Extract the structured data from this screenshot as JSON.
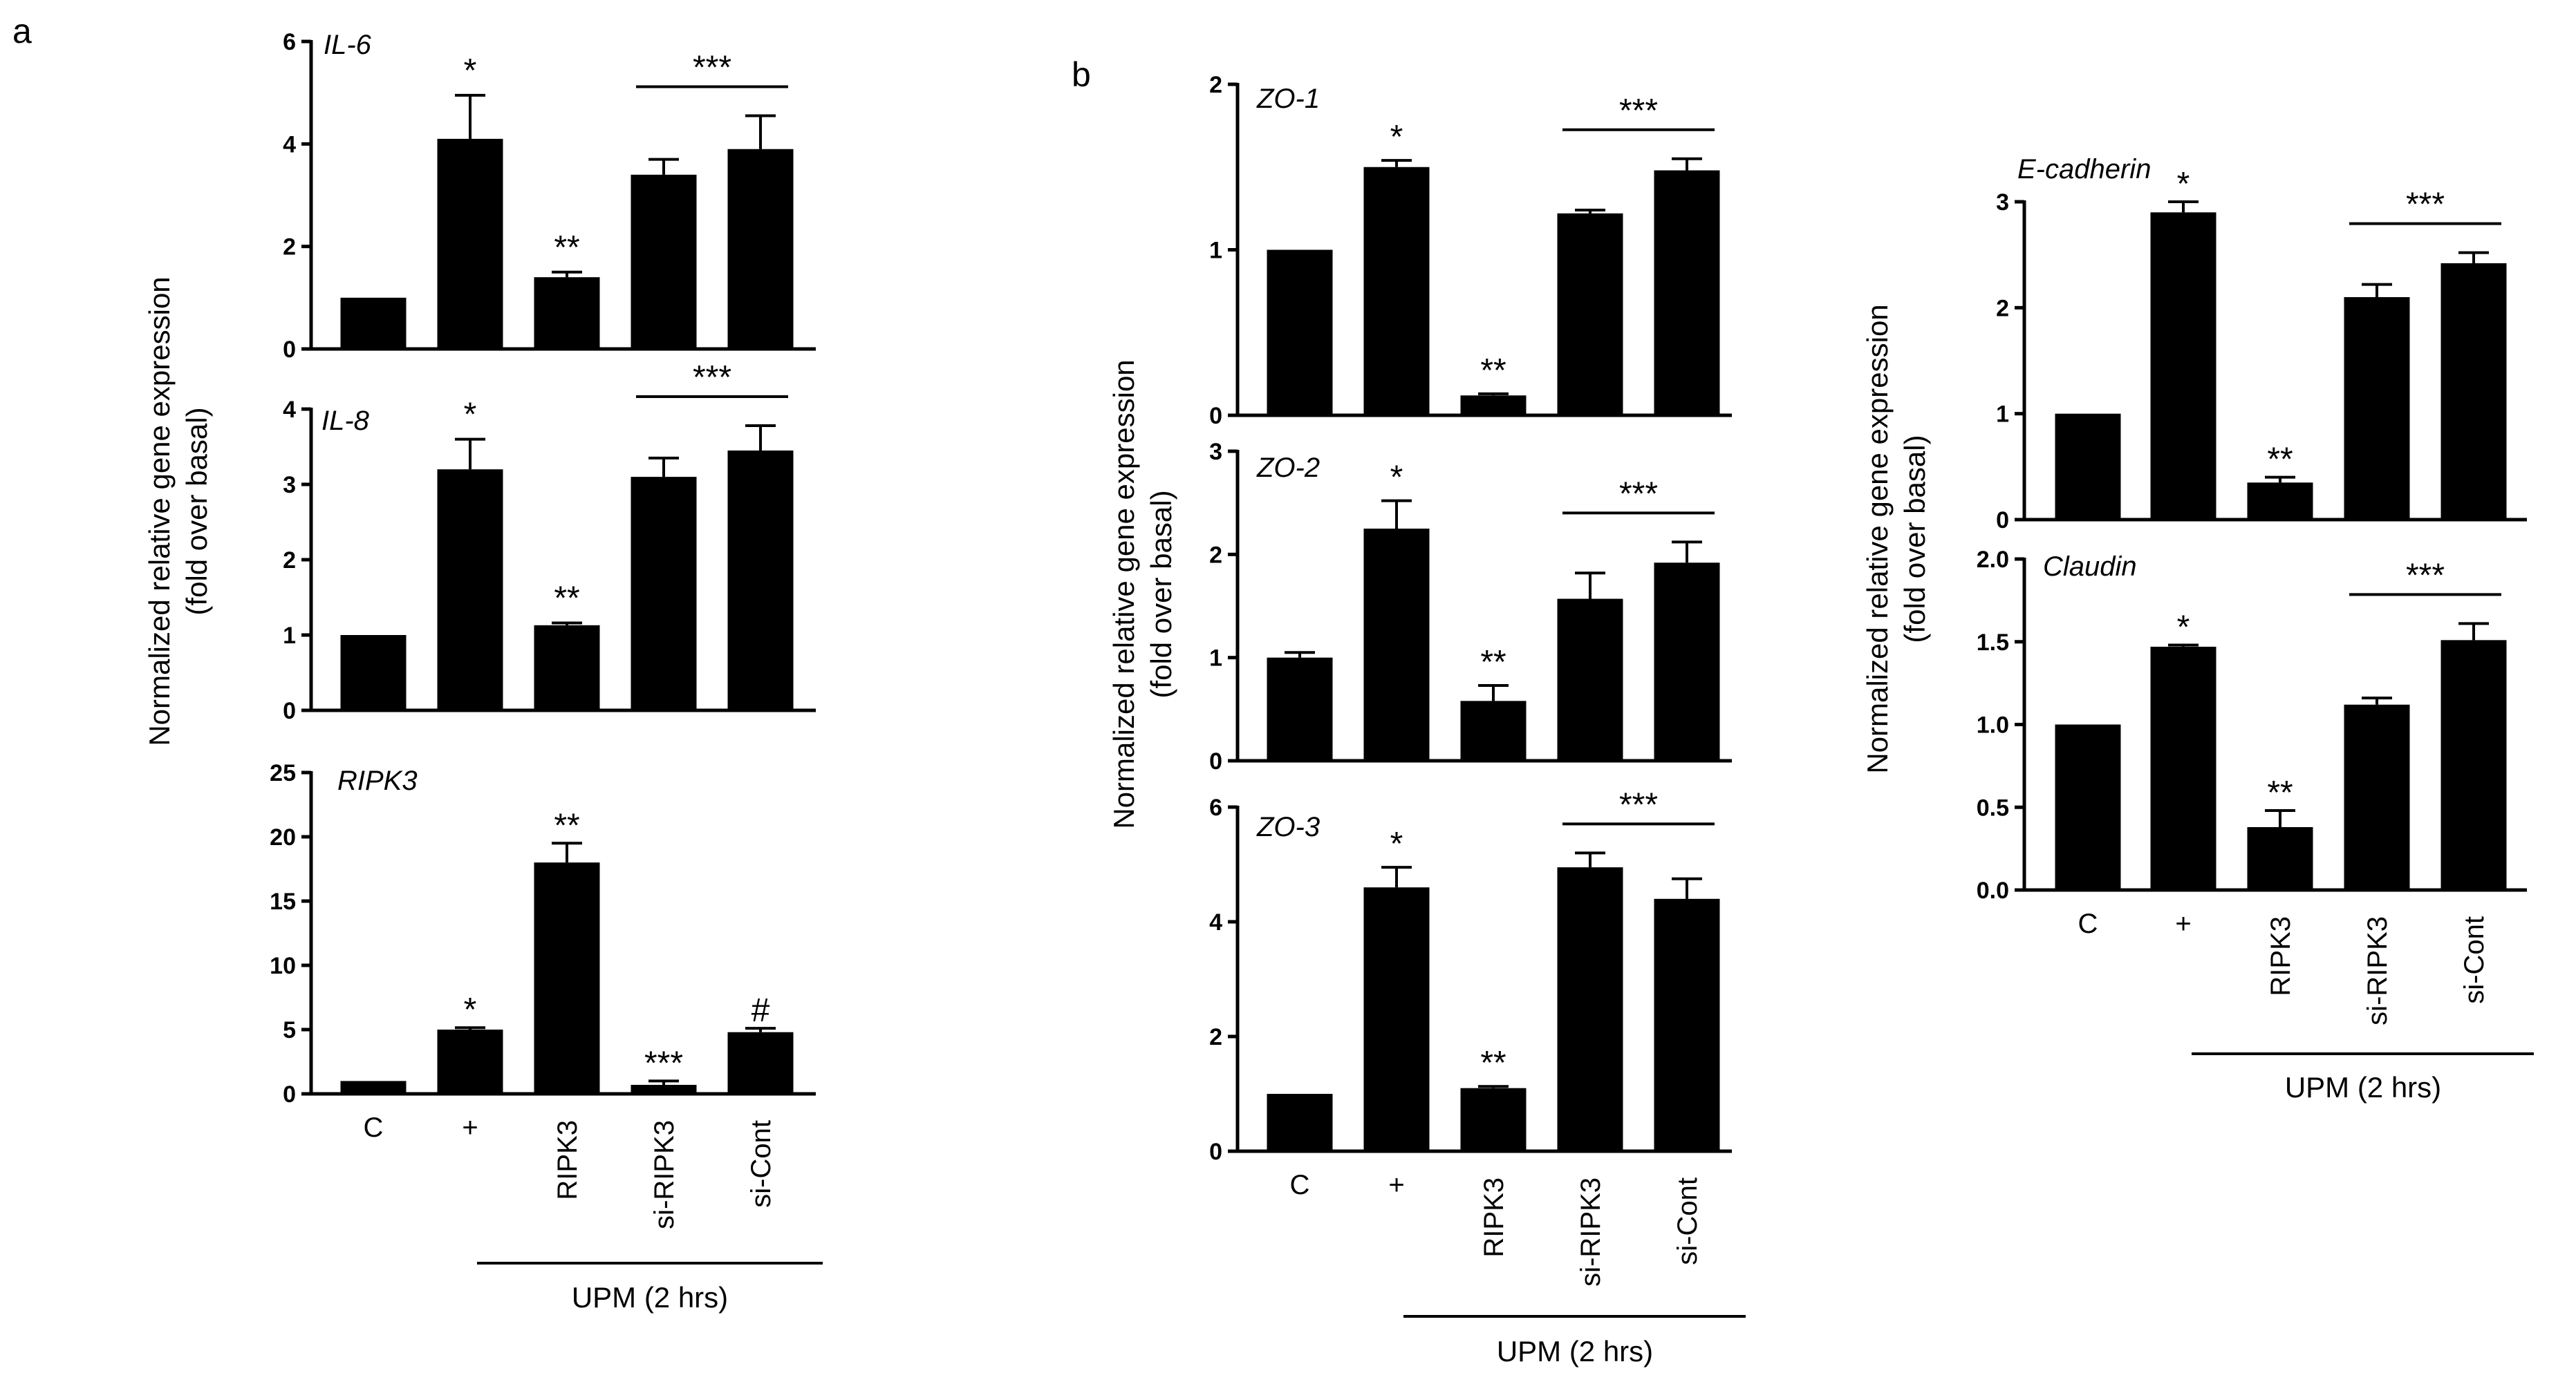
{
  "figure": {
    "categories": [
      "C",
      "+",
      "RIPK3",
      "si-RIPK3",
      "si-Cont"
    ],
    "group_label": "UPM (2 hrs)",
    "ylabel_line1": "Normalized relative gene expression",
    "ylabel_line2": "(fold over basal)"
  },
  "panels": [
    {
      "letter": "a"
    },
    {
      "letter": "b"
    }
  ],
  "chart_data": [
    {
      "type": "bar",
      "panel": "a",
      "title": "IL-6",
      "categories": [
        "C",
        "+",
        "RIPK3",
        "si-RIPK3",
        "si-Cont"
      ],
      "values": [
        1.0,
        4.1,
        1.4,
        3.4,
        3.9
      ],
      "errors": [
        0,
        0.85,
        0.1,
        0.3,
        0.65
      ],
      "yticks": [
        0,
        2,
        4,
        6
      ],
      "ylim": [
        0,
        6
      ],
      "annotations": [
        "",
        "*",
        "**",
        "",
        ""
      ],
      "bracket_label": "***"
    },
    {
      "type": "bar",
      "panel": "a",
      "title": "IL-8",
      "categories": [
        "C",
        "+",
        "RIPK3",
        "si-RIPK3",
        "si-Cont"
      ],
      "values": [
        1.0,
        3.2,
        1.13,
        3.1,
        3.45
      ],
      "errors": [
        0,
        0.4,
        0.03,
        0.25,
        0.33
      ],
      "yticks": [
        0,
        1,
        2,
        3,
        4
      ],
      "ylim": [
        0,
        4
      ],
      "annotations": [
        "",
        "*",
        "**",
        "",
        ""
      ],
      "bracket_label": "***"
    },
    {
      "type": "bar",
      "panel": "a",
      "title": "RIPK3",
      "categories": [
        "C",
        "+",
        "RIPK3",
        "si-RIPK3",
        "si-Cont"
      ],
      "values": [
        1.0,
        5.0,
        18.0,
        0.7,
        4.8
      ],
      "errors": [
        0,
        0.15,
        1.5,
        0.3,
        0.3
      ],
      "yticks": [
        0,
        5,
        10,
        15,
        20,
        25
      ],
      "ylim": [
        0,
        25
      ],
      "annotations": [
        "",
        "*",
        "**",
        "***",
        "#"
      ],
      "bracket_label": ""
    },
    {
      "type": "bar",
      "panel": "b",
      "title": "ZO-1",
      "categories": [
        "C",
        "+",
        "RIPK3",
        "si-RIPK3",
        "si-Cont"
      ],
      "values": [
        1.0,
        1.5,
        0.12,
        1.22,
        1.48
      ],
      "errors": [
        0,
        0.04,
        0.01,
        0.02,
        0.07
      ],
      "yticks": [
        0,
        1,
        2
      ],
      "ylim": [
        0,
        2
      ],
      "annotations": [
        "",
        "*",
        "**",
        "",
        ""
      ],
      "bracket_label": "***"
    },
    {
      "type": "bar",
      "panel": "b",
      "title": "ZO-2",
      "categories": [
        "C",
        "+",
        "RIPK3",
        "si-RIPK3",
        "si-Cont"
      ],
      "values": [
        1.0,
        2.25,
        0.58,
        1.57,
        1.92
      ],
      "errors": [
        0.05,
        0.27,
        0.15,
        0.25,
        0.2
      ],
      "yticks": [
        0,
        1,
        2,
        3
      ],
      "ylim": [
        0,
        3
      ],
      "annotations": [
        "",
        "*",
        "**",
        "",
        ""
      ],
      "bracket_label": "***"
    },
    {
      "type": "bar",
      "panel": "b",
      "title": "ZO-3",
      "categories": [
        "C",
        "+",
        "RIPK3",
        "si-RIPK3",
        "si-Cont"
      ],
      "values": [
        1.0,
        4.6,
        1.1,
        4.95,
        4.4
      ],
      "errors": [
        0,
        0.35,
        0.03,
        0.25,
        0.35
      ],
      "yticks": [
        0,
        2,
        4,
        6
      ],
      "ylim": [
        0,
        6
      ],
      "annotations": [
        "",
        "*",
        "**",
        "",
        ""
      ],
      "bracket_label": "***"
    },
    {
      "type": "bar",
      "panel": "b",
      "title": "E-cadherin",
      "categories": [
        "C",
        "+",
        "RIPK3",
        "si-RIPK3",
        "si-Cont"
      ],
      "values": [
        1.0,
        2.9,
        0.35,
        2.1,
        2.42
      ],
      "errors": [
        0,
        0.1,
        0.05,
        0.12,
        0.1
      ],
      "yticks": [
        0,
        1,
        2,
        3
      ],
      "ylim": [
        0,
        3
      ],
      "annotations": [
        "",
        "*",
        "**",
        "",
        ""
      ],
      "bracket_label": "***"
    },
    {
      "type": "bar",
      "panel": "b",
      "title": "Claudin",
      "categories": [
        "C",
        "+",
        "RIPK3",
        "si-RIPK3",
        "si-Cont"
      ],
      "values": [
        1.0,
        1.47,
        0.38,
        1.12,
        1.51
      ],
      "errors": [
        0,
        0.01,
        0.1,
        0.04,
        0.1
      ],
      "yticks": [
        0.0,
        0.5,
        1.0,
        1.5,
        2.0
      ],
      "ytick_labels": [
        "0.0",
        "0.5",
        "1.0",
        "1.5",
        "2.0"
      ],
      "ylim": [
        0,
        2
      ],
      "annotations": [
        "",
        "*",
        "**",
        "",
        ""
      ],
      "bracket_label": "***"
    }
  ]
}
